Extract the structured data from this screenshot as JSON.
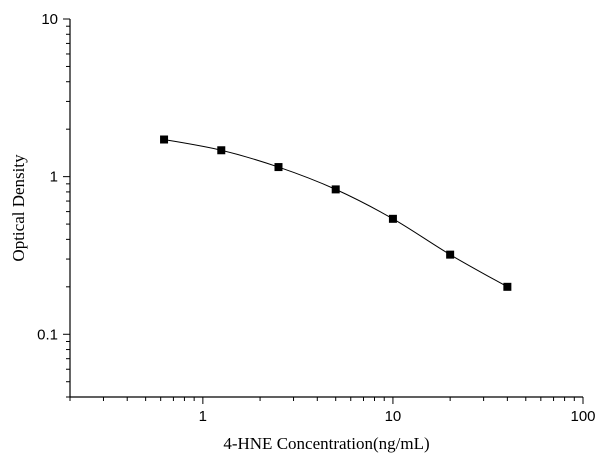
{
  "chart_data": {
    "type": "line",
    "title": "",
    "xlabel": "4-HNE Concentration(ng/mL)",
    "ylabel": "Optical Density",
    "x_scale": "log",
    "y_scale": "log",
    "xlim": [
      0.2,
      100
    ],
    "ylim": [
      0.04,
      10
    ],
    "x_ticks": [
      1,
      10,
      100
    ],
    "x_tick_labels": [
      "1",
      "10",
      "100"
    ],
    "y_ticks": [
      0.1,
      1,
      10
    ],
    "y_tick_labels": [
      "0.1",
      "1",
      "10"
    ],
    "grid": false,
    "legend": "none",
    "marker": "square",
    "colors": {
      "line": "#000000",
      "marker": "#000000",
      "axis": "#000000"
    },
    "series": [
      {
        "x": [
          0.625,
          1.25,
          2.5,
          5,
          10,
          20,
          40
        ],
        "y": [
          1.72,
          1.47,
          1.15,
          0.83,
          0.54,
          0.32,
          0.2
        ]
      }
    ]
  }
}
